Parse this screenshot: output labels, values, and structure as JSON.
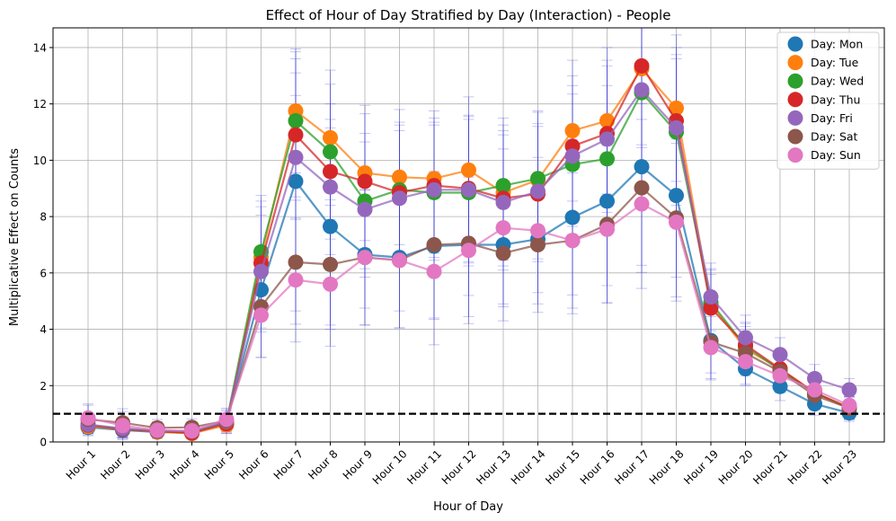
{
  "chart_data": {
    "type": "line",
    "title": "Effect of Hour of Day Stratified by Day (Interaction) - People",
    "xlabel": "Hour of Day",
    "ylabel": "Multiplicative Effect on Counts",
    "categories": [
      "Hour 1",
      "Hour 2",
      "Hour 3",
      "Hour 4",
      "Hour 5",
      "Hour 6",
      "Hour 7",
      "Hour 8",
      "Hour 9",
      "Hour 10",
      "Hour 11",
      "Hour 12",
      "Hour 13",
      "Hour 14",
      "Hour 15",
      "Hour 16",
      "Hour 17",
      "Hour 18",
      "Hour 19",
      "Hour 20",
      "Hour 21",
      "Hour 22",
      "Hour 23"
    ],
    "ylim": [
      0,
      14.7
    ],
    "yticks": [
      0,
      2,
      4,
      6,
      8,
      10,
      12,
      14
    ],
    "grid": true,
    "legend_position": "top-right",
    "reference_line": 1,
    "series": [
      {
        "name": "Day: Mon",
        "color": "#1f77b4",
        "values": [
          0.52,
          0.42,
          0.35,
          0.33,
          0.7,
          5.4,
          9.25,
          7.65,
          6.65,
          6.55,
          6.95,
          7.0,
          7.0,
          7.2,
          7.97,
          8.55,
          9.77,
          8.75,
          3.6,
          2.6,
          1.97,
          1.35,
          1.03
        ],
        "err": [
          0.3,
          0.3,
          0.2,
          0.2,
          0.4,
          1.5,
          4.6,
          3.5,
          1.9,
          1.9,
          2.6,
          1.8,
          2.1,
          1.9,
          2.75,
          3.0,
          3.5,
          2.9,
          1.4,
          0.6,
          0.5,
          0.4,
          0.3
        ]
      },
      {
        "name": "Day: Tue",
        "color": "#ff7f0e",
        "values": [
          0.55,
          0.45,
          0.36,
          0.3,
          0.6,
          6.55,
          11.75,
          10.8,
          9.55,
          9.4,
          9.35,
          9.65,
          8.85,
          9.3,
          11.05,
          11.4,
          13.25,
          11.85,
          4.9,
          3.3,
          2.6,
          1.75,
          1.22
        ],
        "err": [
          0.3,
          0.3,
          0.2,
          0.2,
          0.3,
          2.0,
          2.2,
          2.4,
          2.4,
          2.4,
          2.4,
          2.6,
          2.4,
          2.4,
          2.5,
          2.6,
          2.8,
          2.6,
          1.2,
          0.8,
          0.6,
          0.5,
          0.4
        ]
      },
      {
        "name": "Day: Wed",
        "color": "#2ca02c",
        "values": [
          0.6,
          0.45,
          0.38,
          0.35,
          0.7,
          6.75,
          11.4,
          10.3,
          8.55,
          8.95,
          8.85,
          8.85,
          9.1,
          9.35,
          9.85,
          10.05,
          12.4,
          11.0,
          4.95,
          3.4,
          2.55,
          1.75,
          1.2
        ],
        "err": [
          0.3,
          0.3,
          0.2,
          0.2,
          0.3,
          2.0,
          2.2,
          2.4,
          2.4,
          2.4,
          2.4,
          2.6,
          2.4,
          2.4,
          2.5,
          2.6,
          2.8,
          2.6,
          1.2,
          0.8,
          0.6,
          0.5,
          0.4
        ]
      },
      {
        "name": "Day: Thu",
        "color": "#d62728",
        "values": [
          0.6,
          0.45,
          0.38,
          0.32,
          0.65,
          6.35,
          10.9,
          9.6,
          9.25,
          8.85,
          9.1,
          9.0,
          8.65,
          8.8,
          10.5,
          10.95,
          13.35,
          11.4,
          4.75,
          3.45,
          2.6,
          1.75,
          1.2
        ],
        "err": [
          0.3,
          0.3,
          0.2,
          0.2,
          0.3,
          2.0,
          2.2,
          2.4,
          2.4,
          2.4,
          2.4,
          2.6,
          2.4,
          2.4,
          2.5,
          2.6,
          2.8,
          2.6,
          1.2,
          0.8,
          0.6,
          0.5,
          0.4
        ]
      },
      {
        "name": "Day: Fri",
        "color": "#9467bd",
        "values": [
          0.62,
          0.48,
          0.4,
          0.38,
          0.72,
          6.05,
          10.1,
          9.05,
          8.25,
          8.65,
          8.95,
          8.95,
          8.5,
          8.9,
          10.15,
          10.75,
          12.5,
          11.15,
          5.15,
          3.7,
          3.1,
          2.25,
          1.85
        ],
        "err": [
          0.3,
          0.3,
          0.2,
          0.2,
          0.3,
          2.0,
          2.2,
          2.4,
          2.4,
          2.4,
          2.4,
          2.6,
          2.4,
          2.4,
          2.5,
          2.6,
          2.8,
          2.6,
          1.2,
          0.8,
          0.6,
          0.5,
          0.4
        ]
      },
      {
        "name": "Day: Sat",
        "color": "#8c564b",
        "values": [
          0.8,
          0.68,
          0.5,
          0.52,
          0.75,
          4.8,
          6.38,
          6.3,
          6.55,
          6.45,
          7.0,
          7.05,
          6.7,
          7.0,
          7.15,
          7.72,
          9.02,
          7.95,
          3.55,
          3.15,
          2.5,
          1.65,
          1.2
        ],
        "err": [
          0.5,
          0.5,
          0.3,
          0.3,
          0.4,
          1.8,
          2.2,
          2.3,
          2.4,
          2.4,
          2.6,
          2.6,
          2.4,
          2.4,
          2.6,
          2.8,
          3.0,
          2.8,
          1.1,
          0.8,
          0.6,
          0.5,
          0.4
        ]
      },
      {
        "name": "Day: Sun",
        "color": "#e377c2",
        "values": [
          0.85,
          0.58,
          0.42,
          0.4,
          0.8,
          4.5,
          5.75,
          5.6,
          6.55,
          6.45,
          6.05,
          6.8,
          7.6,
          7.5,
          7.15,
          7.55,
          8.45,
          7.8,
          3.35,
          2.85,
          2.35,
          1.85,
          1.3
        ],
        "err": [
          0.5,
          0.5,
          0.3,
          0.3,
          0.4,
          1.5,
          2.2,
          2.2,
          2.4,
          2.4,
          2.6,
          2.6,
          2.8,
          2.6,
          2.4,
          2.6,
          3.0,
          2.8,
          1.1,
          0.8,
          0.6,
          0.5,
          0.4
        ]
      }
    ]
  }
}
